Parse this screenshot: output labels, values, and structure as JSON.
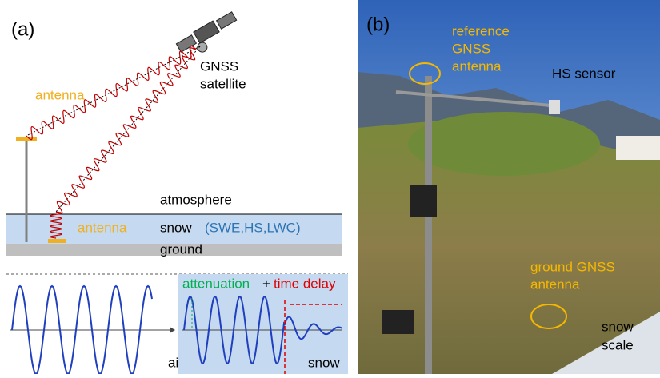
{
  "panel_a": {
    "label": "(a)",
    "satellite_label": [
      "GNSS",
      "satellite"
    ],
    "antenna_top": "antenna",
    "atmosphere": "atmosphere",
    "snow": "snow",
    "snow_params": "(SWE,HS,LWC)",
    "antenna_ground": "antenna",
    "ground": "ground",
    "attenuation": "attenuation",
    "plus": "+",
    "time_delay": "time delay",
    "air": "air",
    "snow_bottom": "snow"
  },
  "panel_b": {
    "label": "(b)",
    "reference_antenna": [
      "reference",
      "GNSS",
      "antenna"
    ],
    "hs_sensor": "HS sensor",
    "ground_antenna": [
      "ground GNSS",
      "antenna"
    ],
    "snow_scale": [
      "snow",
      "scale"
    ]
  }
}
